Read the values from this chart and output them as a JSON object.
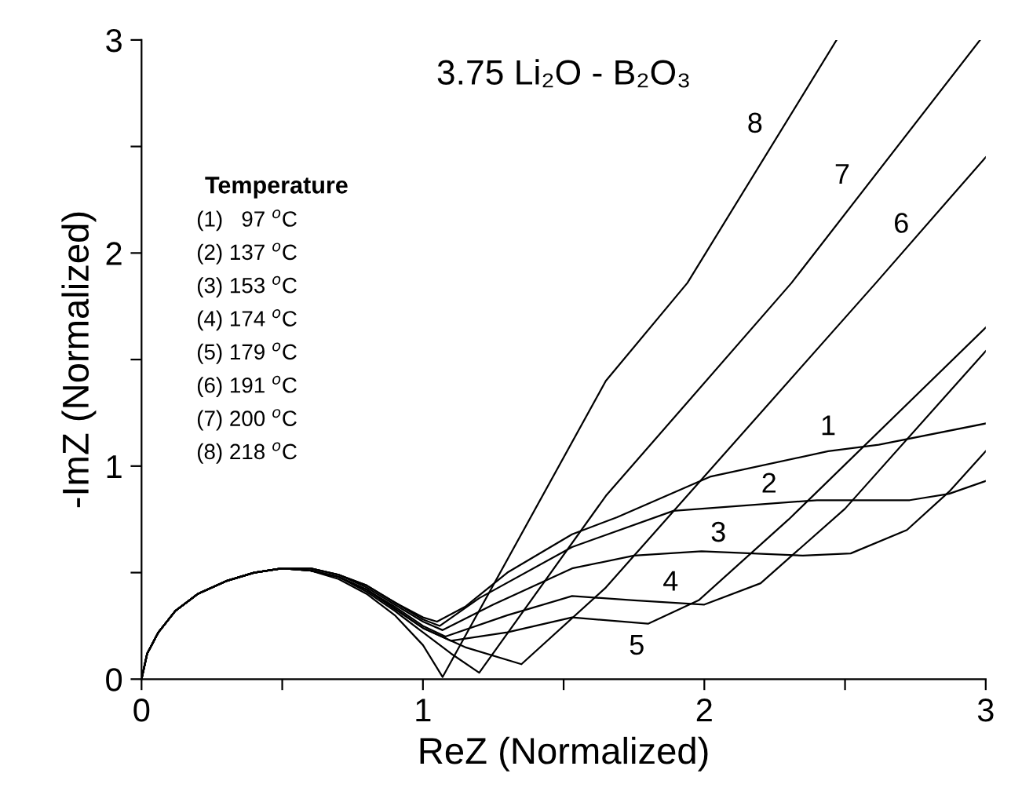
{
  "chart_data": {
    "type": "line",
    "title": "3.75 Li₂O - B₂O₃",
    "xlabel": "ReZ (Normalized)",
    "ylabel": "-ImZ (Normalized)",
    "xlim": [
      0,
      3
    ],
    "ylim": [
      0,
      3
    ],
    "xticks": [
      0,
      {
        "value": 0.5,
        "label": null
      },
      1,
      {
        "value": 1.5,
        "label": null
      },
      2,
      {
        "value": 2.5,
        "label": null
      },
      3
    ],
    "yticks": [
      0,
      {
        "value": 0.5,
        "label": null
      },
      1,
      {
        "value": 1.5,
        "label": null
      },
      2,
      {
        "value": 2.5,
        "label": null
      },
      3
    ],
    "grid": false,
    "legend": false,
    "marker": "none",
    "line_style": "solid",
    "series": [
      {
        "name": "1",
        "color": "#000000",
        "x": [
          0,
          0.02,
          0.06,
          0.12,
          0.2,
          0.3,
          0.4,
          0.5,
          0.6,
          0.7,
          0.8,
          0.9,
          1.0,
          1.05,
          1.15,
          1.3,
          1.53,
          1.69,
          2.02,
          2.44,
          2.62,
          3.0
        ],
        "values": [
          0,
          0.12,
          0.22,
          0.32,
          0.4,
          0.46,
          0.5,
          0.52,
          0.52,
          0.49,
          0.44,
          0.36,
          0.29,
          0.27,
          0.34,
          0.5,
          0.68,
          0.76,
          0.95,
          1.07,
          1.1,
          1.2
        ]
      },
      {
        "name": "2",
        "color": "#000000",
        "x": [
          0,
          0.02,
          0.06,
          0.12,
          0.2,
          0.3,
          0.4,
          0.5,
          0.6,
          0.7,
          0.8,
          0.9,
          1.0,
          1.06,
          1.2,
          1.53,
          1.89,
          2.4,
          2.73,
          2.87,
          3.0
        ],
        "values": [
          0,
          0.12,
          0.22,
          0.32,
          0.4,
          0.46,
          0.5,
          0.52,
          0.52,
          0.49,
          0.44,
          0.36,
          0.28,
          0.25,
          0.38,
          0.62,
          0.79,
          0.84,
          0.84,
          0.87,
          0.93
        ]
      },
      {
        "name": "3",
        "color": "#000000",
        "x": [
          0,
          0.02,
          0.06,
          0.12,
          0.2,
          0.3,
          0.4,
          0.5,
          0.6,
          0.7,
          0.8,
          0.9,
          1.0,
          1.07,
          1.25,
          1.53,
          1.75,
          1.99,
          2.35,
          2.52,
          2.72,
          2.87,
          3.0
        ],
        "values": [
          0,
          0.12,
          0.22,
          0.32,
          0.4,
          0.46,
          0.5,
          0.52,
          0.52,
          0.49,
          0.43,
          0.35,
          0.27,
          0.23,
          0.35,
          0.52,
          0.58,
          0.6,
          0.58,
          0.59,
          0.7,
          0.88,
          1.07
        ]
      },
      {
        "name": "4",
        "color": "#000000",
        "x": [
          0,
          0.02,
          0.06,
          0.12,
          0.2,
          0.3,
          0.4,
          0.5,
          0.6,
          0.7,
          0.8,
          0.9,
          1.0,
          1.08,
          1.3,
          1.53,
          1.75,
          2.0,
          2.2,
          2.5,
          3.0
        ],
        "values": [
          0,
          0.12,
          0.22,
          0.32,
          0.4,
          0.46,
          0.5,
          0.52,
          0.51,
          0.48,
          0.42,
          0.34,
          0.25,
          0.2,
          0.3,
          0.39,
          0.37,
          0.35,
          0.45,
          0.8,
          1.54
        ]
      },
      {
        "name": "5",
        "color": "#000000",
        "x": [
          0,
          0.02,
          0.06,
          0.12,
          0.2,
          0.3,
          0.4,
          0.5,
          0.6,
          0.7,
          0.8,
          0.9,
          1.0,
          1.1,
          1.3,
          1.53,
          1.8,
          1.98,
          2.3,
          3.0
        ],
        "values": [
          0,
          0.12,
          0.22,
          0.32,
          0.4,
          0.46,
          0.5,
          0.52,
          0.51,
          0.48,
          0.42,
          0.33,
          0.24,
          0.18,
          0.22,
          0.29,
          0.26,
          0.37,
          0.75,
          1.65
        ]
      },
      {
        "name": "6",
        "color": "#000000",
        "x": [
          0,
          0.02,
          0.06,
          0.12,
          0.2,
          0.3,
          0.4,
          0.5,
          0.6,
          0.7,
          0.8,
          0.9,
          1.0,
          1.15,
          1.35,
          1.65,
          2.61,
          3.0
        ],
        "values": [
          0,
          0.12,
          0.22,
          0.32,
          0.4,
          0.46,
          0.5,
          0.52,
          0.51,
          0.48,
          0.42,
          0.33,
          0.24,
          0.15,
          0.07,
          0.43,
          1.86,
          2.45
        ]
      },
      {
        "name": "7",
        "color": "#000000",
        "x": [
          0,
          0.02,
          0.06,
          0.12,
          0.2,
          0.3,
          0.4,
          0.5,
          0.6,
          0.7,
          0.8,
          0.9,
          1.0,
          1.1,
          1.2,
          1.65,
          2.31,
          2.98
        ],
        "values": [
          0,
          0.12,
          0.22,
          0.32,
          0.4,
          0.46,
          0.5,
          0.52,
          0.51,
          0.48,
          0.41,
          0.32,
          0.22,
          0.12,
          0.03,
          0.86,
          1.86,
          3.0
        ]
      },
      {
        "name": "8",
        "color": "#000000",
        "x": [
          0,
          0.02,
          0.06,
          0.12,
          0.2,
          0.3,
          0.4,
          0.5,
          0.6,
          0.7,
          0.8,
          0.9,
          1.0,
          1.07,
          1.65,
          1.94,
          2.47
        ],
        "values": [
          0,
          0.12,
          0.22,
          0.32,
          0.4,
          0.46,
          0.5,
          0.52,
          0.51,
          0.47,
          0.4,
          0.3,
          0.16,
          0.01,
          1.4,
          1.86,
          3.0
        ]
      }
    ],
    "annotations": [
      "Temperature",
      "(1)   97 $^{o}$C",
      "(2) 137 $^{o}$C",
      "(3) 153 $^{o}$C",
      "(4) 174 $^{o}$C",
      "(5) 179 $^{o}$C",
      "(6) 191 $^{o}$C",
      "(7) 200 $^{o}$C",
      "(8) 218 $^{o}$C"
    ]
  }
}
